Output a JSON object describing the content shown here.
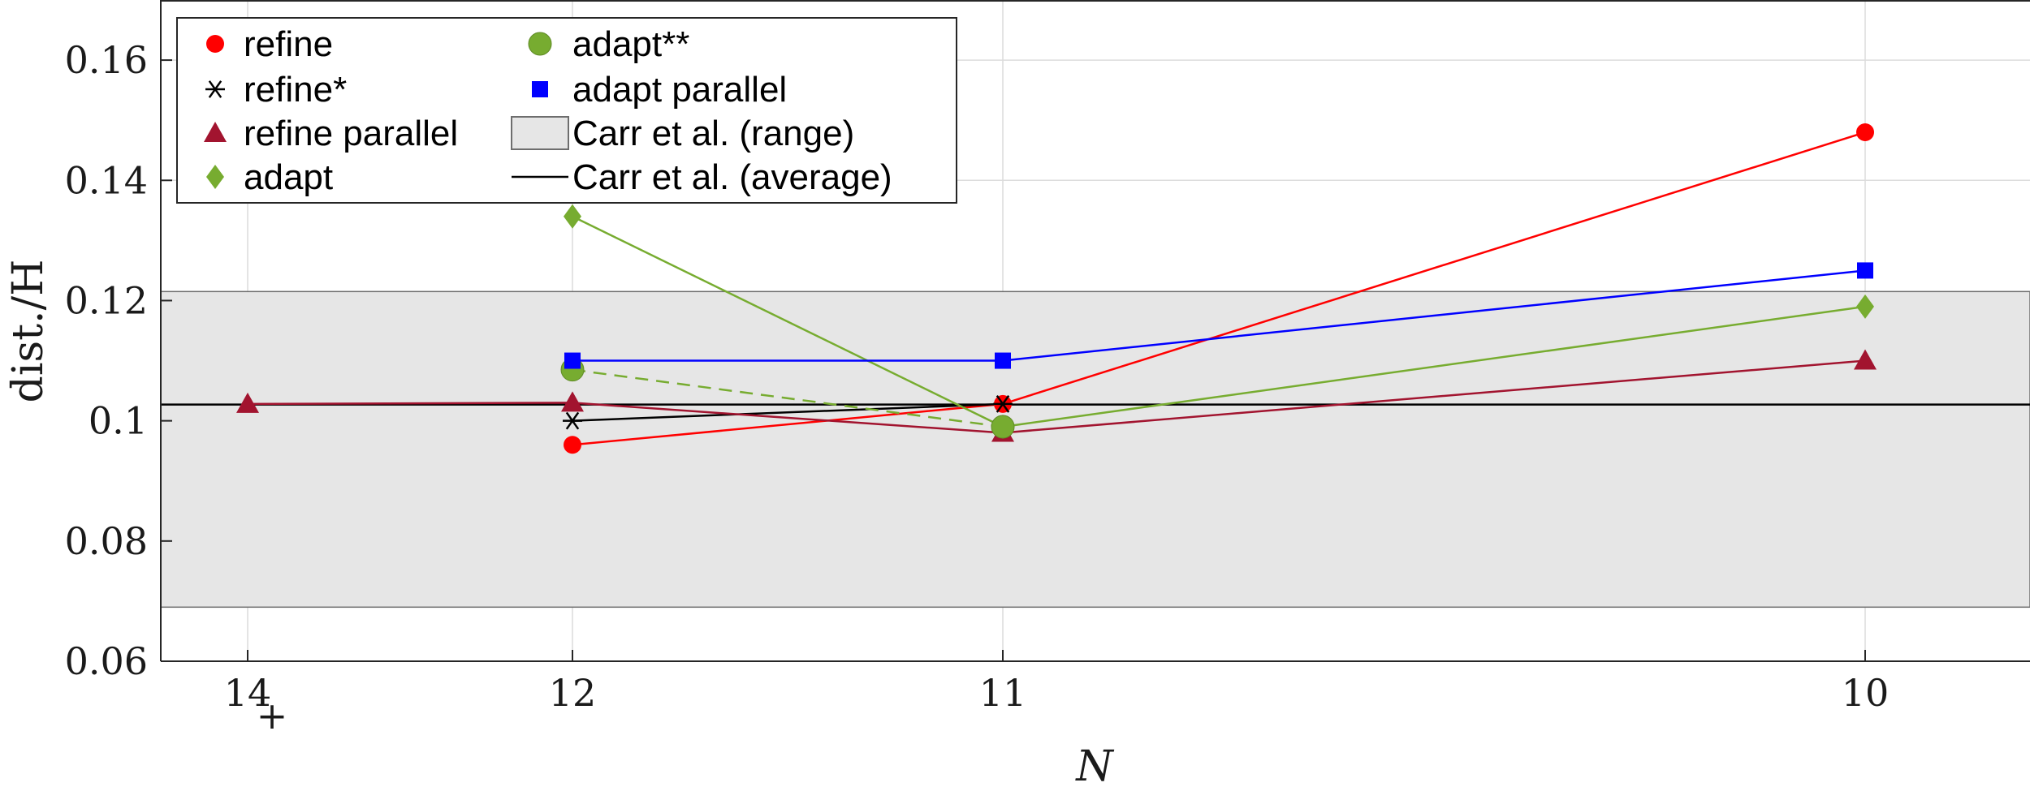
{
  "chart_data": {
    "type": "line",
    "xlabel": "N",
    "ylabel": "dist./H",
    "x_categories": [
      "14",
      "12",
      "11",
      "10"
    ],
    "x_subscripts": [
      "+",
      "",
      "",
      ""
    ],
    "x_reversed": true,
    "ylim": [
      0.06,
      0.17
    ],
    "yticks": [
      "0.06",
      "0.08",
      "0.1",
      "0.12",
      "0.14",
      "0.16"
    ],
    "ytick_values": [
      0.06,
      0.08,
      0.1,
      0.12,
      0.14,
      0.16
    ],
    "grid": true,
    "legend_position": "top-left",
    "reference": {
      "range_label": "Carr et al. (range)",
      "range": [
        0.069,
        0.1215
      ],
      "average_label": "Carr et al. (average)",
      "average": 0.1027
    },
    "series": [
      {
        "name": "refine",
        "color": "#ff0000",
        "marker": "circle",
        "line": "solid",
        "x": [
          12,
          11,
          10
        ],
        "y": [
          0.096,
          0.1028,
          0.148
        ]
      },
      {
        "name": "refine*",
        "color": "#000000",
        "marker": "asterisk",
        "line": "solid",
        "x": [
          12,
          11
        ],
        "y": [
          0.1,
          0.1028
        ]
      },
      {
        "name": "refine parallel",
        "color": "#a2142f",
        "marker": "triangle",
        "line": "solid",
        "x": [
          14,
          12,
          11,
          10
        ],
        "y": [
          0.1028,
          0.103,
          0.098,
          0.11
        ]
      },
      {
        "name": "adapt",
        "color": "#77ac30",
        "marker": "diamond",
        "line": "solid",
        "x": [
          12,
          11,
          10
        ],
        "y": [
          0.134,
          0.099,
          0.119
        ]
      },
      {
        "name": "adapt**",
        "color": "#77ac30",
        "marker": "bigcircle",
        "line": "dashed",
        "x": [
          12,
          11
        ],
        "y": [
          0.1085,
          0.099
        ]
      },
      {
        "name": "adapt parallel",
        "color": "#0000ff",
        "marker": "square",
        "line": "solid",
        "x": [
          12,
          11,
          10
        ],
        "y": [
          0.11,
          0.11,
          0.125
        ]
      }
    ],
    "legend_order": [
      "refine",
      "refine*",
      "refine parallel",
      "adapt",
      "adapt**",
      "adapt parallel",
      "Carr et al. (range)",
      "Carr et al. (average)"
    ]
  }
}
